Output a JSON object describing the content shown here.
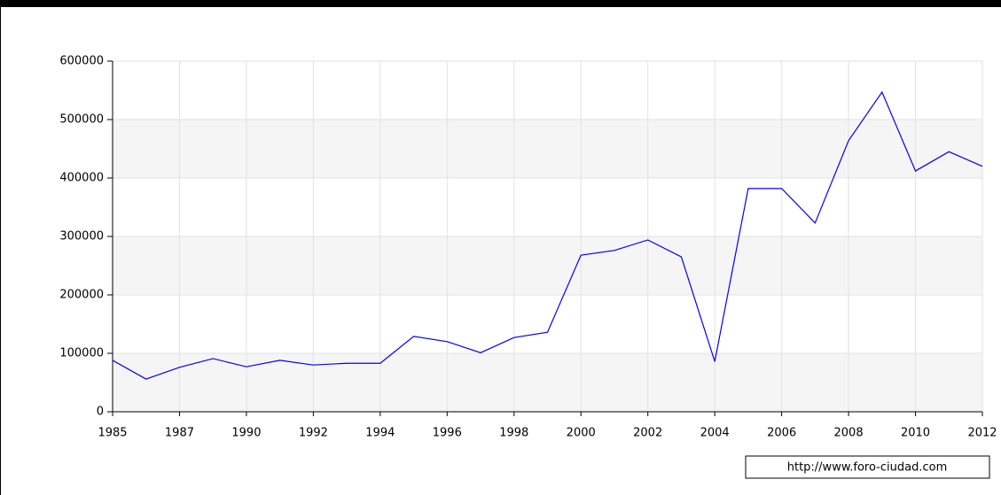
{
  "chart_data": {
    "type": "line",
    "categories": [
      "1985",
      null,
      "1987",
      null,
      "1990",
      null,
      "1992",
      null,
      "1994",
      null,
      "1996",
      null,
      "1998",
      null,
      "2000",
      null,
      "2002",
      null,
      "2004",
      null,
      "2006",
      null,
      "2008",
      null,
      "2010",
      null,
      "2012"
    ],
    "series": [
      {
        "color": "#0000ff",
        "values": [
          88000,
          56000,
          76000,
          91000,
          77000,
          88000,
          80000,
          83000,
          83000,
          129000,
          120000,
          101000,
          127000,
          136000,
          268000,
          276000,
          294000,
          265000,
          86000,
          382000,
          382000,
          323000,
          464000,
          547000,
          412000,
          445000,
          420000
        ]
      }
    ],
    "ylim": [
      0,
      600000
    ],
    "yticks": [
      0,
      100000,
      200000,
      300000,
      400000,
      500000,
      600000
    ],
    "grid": true,
    "watermark": "http://www.foro-ciudad.com"
  }
}
